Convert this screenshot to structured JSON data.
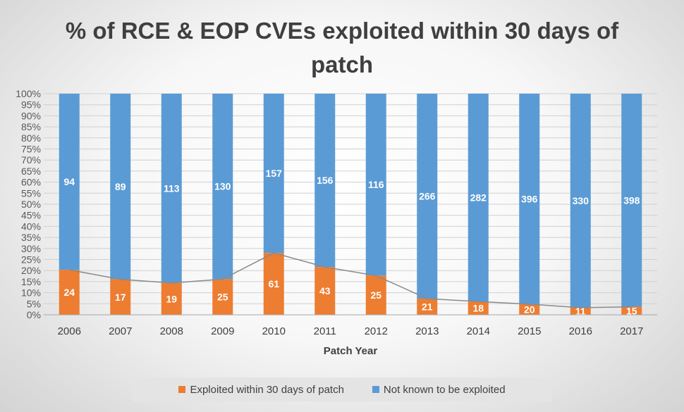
{
  "chart_data": {
    "type": "bar",
    "stacked": "percent",
    "title": "% of RCE & EOP CVEs exploited within 30 days of patch",
    "xlabel": "Patch Year",
    "ylabel": "",
    "ylim": [
      0,
      100
    ],
    "yticks": [
      "0%",
      "5%",
      "10%",
      "15%",
      "20%",
      "25%",
      "30%",
      "35%",
      "40%",
      "45%",
      "50%",
      "55%",
      "60%",
      "65%",
      "70%",
      "75%",
      "80%",
      "85%",
      "90%",
      "95%",
      "100%"
    ],
    "grid": true,
    "legend_position": "bottom",
    "categories": [
      "2006",
      "2007",
      "2008",
      "2009",
      "2010",
      "2011",
      "2012",
      "2013",
      "2014",
      "2015",
      "2016",
      "2017"
    ],
    "series": [
      {
        "name": "Exploited within 30 days of patch",
        "color": "#ed7d31",
        "values": [
          24,
          17,
          19,
          25,
          61,
          43,
          25,
          21,
          18,
          20,
          11,
          15
        ],
        "labels": [
          "24",
          "17",
          "19",
          "25",
          "61",
          "43",
          "25",
          "21",
          "18",
          "20",
          "11",
          "15"
        ]
      },
      {
        "name": "Not known to be exploited",
        "color": "#5b9bd5",
        "values": [
          94,
          89,
          113,
          130,
          157,
          156,
          116,
          266,
          282,
          396,
          330,
          398
        ],
        "labels": [
          "94",
          "89",
          "113",
          "130",
          "157",
          "156",
          "116",
          "266",
          "282",
          "396",
          "330",
          "398"
        ]
      }
    ],
    "trendline": {
      "series": "Exploited within 30 days of patch",
      "color": "#8a8a8a"
    }
  }
}
